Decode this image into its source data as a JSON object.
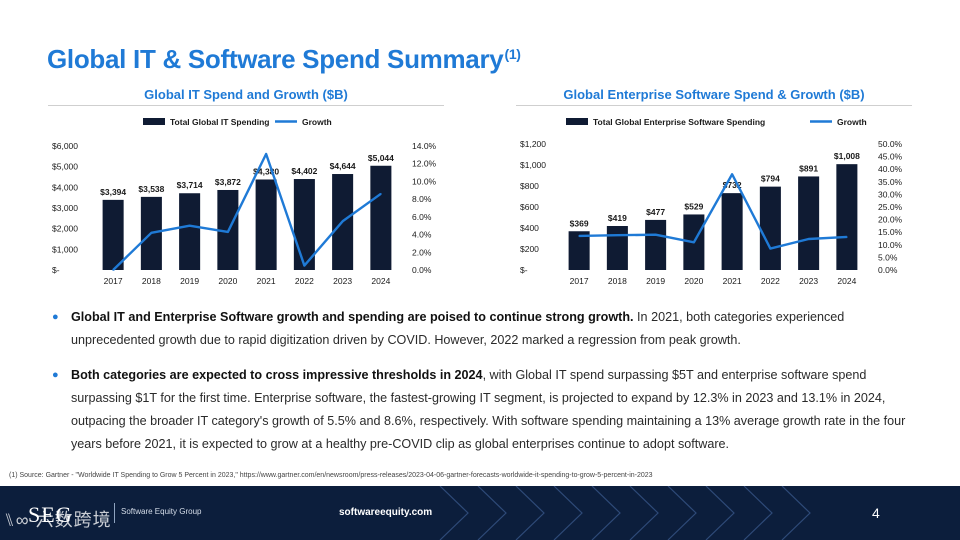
{
  "page": {
    "title": "Global IT & Software Spend Summary",
    "title_note": "(1)",
    "page_number": "4",
    "website": "softwareequity.com",
    "logo_text": "SEG",
    "logo_company": "Software Equity Group",
    "watermark": "⑊∞ 六数跨境"
  },
  "bullets": [
    {
      "bold": "Global IT and Enterprise Software growth and spending are poised to continue strong growth.",
      "text": " In 2021, both categories experienced unprecedented growth due to rapid digitization driven by COVID. However, 2022 marked a regression from peak growth."
    },
    {
      "bold": "Both categories are expected to cross impressive thresholds in 2024",
      "text": ", with Global IT spend surpassing $5T and enterprise software spend surpassing $1T for the first time. Enterprise software, the fastest-growing IT segment, is projected to expand by 12.3% in 2023 and 13.1% in 2024, outpacing the broader IT category's growth of 5.5% and 8.6%, respectively. With software spending maintaining a 13% average growth rate in the four years before 2021, it is expected to grow at a healthy pre-COVID clip as global enterprises continue to adopt software."
    }
  ],
  "footnote": "(1)  Source: Gartner - \"Worldwide IT Spending to Grow 5 Percent in 2023,\" https://www.gartner.com/en/newsroom/press-releases/2023-04-06-gartner-forecasts-worldwide-it-spending-to-grow-5-percent-in-2023",
  "colors": {
    "accent": "#1f7ad6",
    "bar": "#0f1b33",
    "line": "#1f7ad6",
    "footer": "#0c1e3c"
  },
  "chart_data": [
    {
      "type": "bar",
      "title": "Global IT Spend and Growth ($B)",
      "categories": [
        "2017",
        "2018",
        "2019",
        "2020",
        "2021",
        "2022",
        "2023",
        "2024"
      ],
      "series": [
        {
          "name": "Total Global IT Spending",
          "type": "bar",
          "axis": "left",
          "values": [
            3394,
            3538,
            3714,
            3872,
            4380,
            4402,
            4644,
            5044
          ],
          "labels": [
            "$3,394",
            "$3,538",
            "$3,714",
            "$3,872",
            "$4,380",
            "$4,402",
            "$4,644",
            "$5,044"
          ]
        },
        {
          "name": "Growth",
          "type": "line",
          "axis": "right",
          "values": [
            0.0,
            4.2,
            5.0,
            4.3,
            13.1,
            0.5,
            5.5,
            8.6
          ]
        }
      ],
      "ylim_left": [
        0,
        6000
      ],
      "yticks_left": [
        "$-",
        "$1,000",
        "$2,000",
        "$3,000",
        "$4,000",
        "$5,000",
        "$6,000"
      ],
      "ylim_right": [
        0,
        14
      ],
      "yticks_right": [
        "0.0%",
        "2.0%",
        "4.0%",
        "6.0%",
        "8.0%",
        "10.0%",
        "12.0%",
        "14.0%"
      ],
      "legend_position": "top"
    },
    {
      "type": "bar",
      "title": "Global Enterprise Software Spend & Growth ($B)",
      "categories": [
        "2017",
        "2018",
        "2019",
        "2020",
        "2021",
        "2022",
        "2023",
        "2024"
      ],
      "series": [
        {
          "name": "Total Global Enterprise Software Spending",
          "type": "bar",
          "axis": "left",
          "values": [
            369,
            419,
            477,
            529,
            732,
            794,
            891,
            1008
          ],
          "labels": [
            "$369",
            "$419",
            "$477",
            "$529",
            "$732",
            "$794",
            "$891",
            "$1,008"
          ]
        },
        {
          "name": "Growth",
          "type": "line",
          "axis": "right",
          "values": [
            13.5,
            13.8,
            14.0,
            11.0,
            38.0,
            8.5,
            12.3,
            13.1
          ]
        }
      ],
      "ylim_left": [
        0,
        1200
      ],
      "yticks_left": [
        "$-",
        "$200",
        "$400",
        "$600",
        "$800",
        "$1,000",
        "$1,200"
      ],
      "ylim_right": [
        0,
        50
      ],
      "yticks_right": [
        "0.0%",
        "5.0%",
        "10.0%",
        "15.0%",
        "20.0%",
        "25.0%",
        "30.0%",
        "35.0%",
        "40.0%",
        "45.0%",
        "50.0%"
      ],
      "legend_position": "top"
    }
  ]
}
